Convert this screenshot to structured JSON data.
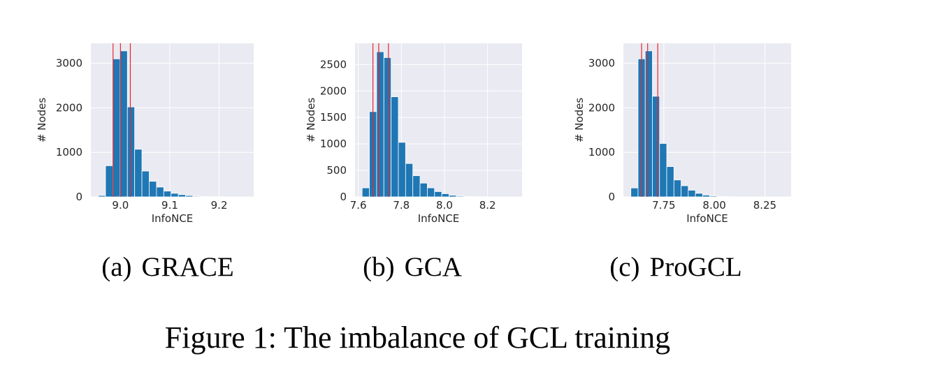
{
  "figure_caption": "Figure 1: The imbalance of GCL training",
  "style": {
    "plot_bg": "#eaeaf2",
    "bar_color": "#1f77b4",
    "vline_color": "#e8262b",
    "grid_color": "#ffffff"
  },
  "chart_data": [
    {
      "type": "bar",
      "subcaption_label": "(a)",
      "subcaption_name": "GRACE",
      "xlabel": "InfoNCE",
      "ylabel": "# Nodes",
      "xlim": [
        8.94,
        9.27
      ],
      "ylim": [
        0,
        3450
      ],
      "xticks": [
        9.0,
        9.1,
        9.2
      ],
      "xtick_labels": [
        "9.0",
        "9.1",
        "9.2"
      ],
      "yticks": [
        0,
        1000,
        2000,
        3000
      ],
      "ytick_labels": [
        "0",
        "1000",
        "2000",
        "3000"
      ],
      "grid": true,
      "bin_start": 8.955,
      "bin_width": 0.01475,
      "values": [
        30,
        700,
        3100,
        3280,
        2020,
        1070,
        580,
        350,
        220,
        130,
        80,
        50,
        30,
        15,
        8,
        5,
        3,
        2,
        1,
        1,
        0
      ],
      "vlines": [
        8.985,
        9.0,
        9.02
      ]
    },
    {
      "type": "bar",
      "subcaption_label": "(b)",
      "subcaption_name": "GCA",
      "xlabel": "InfoNCE",
      "ylabel": "# Nodes",
      "xlim": [
        7.585,
        8.36
      ],
      "ylim": [
        0,
        2900
      ],
      "xticks": [
        7.6,
        7.8,
        8.0,
        8.2
      ],
      "xtick_labels": [
        "7.6",
        "7.8",
        "8.0",
        "8.2"
      ],
      "yticks": [
        0,
        500,
        1000,
        1500,
        2000,
        2500
      ],
      "ytick_labels": [
        "0",
        "500",
        "1000",
        "1500",
        "2000",
        "2500"
      ],
      "grid": true,
      "bin_start": 7.618,
      "bin_width": 0.0336,
      "values": [
        170,
        1610,
        2740,
        2630,
        1890,
        1030,
        630,
        400,
        260,
        170,
        100,
        60,
        30,
        15,
        8,
        4,
        2,
        1,
        1,
        0,
        0
      ],
      "vlines": [
        7.668,
        7.695,
        7.74
      ]
    },
    {
      "type": "bar",
      "subcaption_label": "(c)",
      "subcaption_name": "ProGCL",
      "xlabel": "InfoNCE",
      "ylabel": "# Nodes",
      "xlim": [
        7.55,
        8.38
      ],
      "ylim": [
        0,
        3450
      ],
      "xticks": [
        7.75,
        8.0,
        8.25
      ],
      "xtick_labels": [
        "7.75",
        "8.00",
        "8.25"
      ],
      "yticks": [
        0,
        1000,
        2000,
        3000
      ],
      "ytick_labels": [
        "0",
        "1000",
        "2000",
        "3000"
      ],
      "grid": true,
      "bin_start": 7.587,
      "bin_width": 0.0355,
      "values": [
        200,
        3100,
        3280,
        2260,
        1200,
        680,
        380,
        250,
        150,
        80,
        40,
        20,
        10,
        5,
        3,
        2,
        1,
        0,
        0,
        0,
        0
      ],
      "vlines": [
        7.64,
        7.67,
        7.72
      ]
    }
  ]
}
